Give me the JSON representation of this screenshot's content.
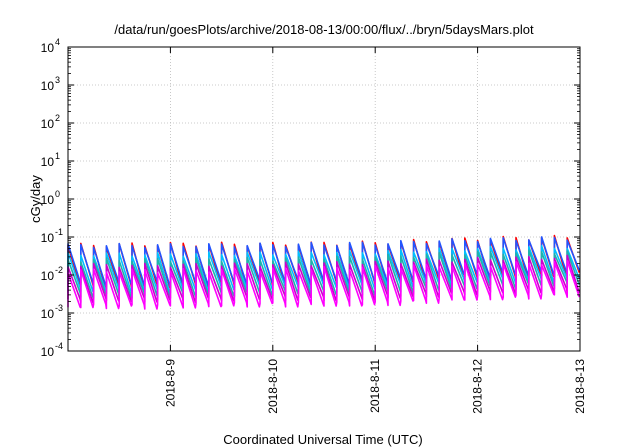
{
  "chart_data": {
    "type": "line",
    "title": "/data/run/goesPlots/archive/2018-08-13/00:00/flux/../bryn/5daysMars.plot",
    "xlabel": "Coordinated Universal Time (UTC)",
    "ylabel": "cGy/day",
    "yscale": "log",
    "ylim": [
      0.0001,
      10000
    ],
    "xlim": [
      "2018-08-08 00:00",
      "2018-08-13 00:00"
    ],
    "grid": true,
    "legend": "none",
    "y_ticks": [
      {
        "base": "10",
        "exp": "4"
      },
      {
        "base": "10",
        "exp": "3"
      },
      {
        "base": "10",
        "exp": "2"
      },
      {
        "base": "10",
        "exp": "1"
      },
      {
        "base": "10",
        "exp": "0"
      },
      {
        "base": "10",
        "exp": "-1"
      },
      {
        "base": "10",
        "exp": "-2"
      },
      {
        "base": "10",
        "exp": "-3"
      },
      {
        "base": "10",
        "exp": "-4"
      }
    ],
    "x_ticks": [
      "2018-8-9",
      "2018-8-10",
      "2018-8-11",
      "2018-8-12",
      "2018-8-13"
    ],
    "pattern": {
      "period_hours": 3,
      "description": "sawtooth: instantaneous rise at each period start, exponential decay until next period"
    },
    "series": [
      {
        "color": "#ff0000",
        "peak_values": [
          0.06,
          0.065,
          0.065,
          0.07,
          0.09,
          0.1
        ],
        "trough_values": [
          0.005,
          0.005,
          0.006,
          0.006,
          0.008,
          0.01
        ]
      },
      {
        "color": "#2255ff",
        "peak_values": [
          0.06,
          0.06,
          0.062,
          0.068,
          0.085,
          0.095
        ],
        "trough_values": [
          0.006,
          0.006,
          0.007,
          0.007,
          0.01,
          0.012
        ]
      },
      {
        "color": "#00bfff",
        "peak_values": [
          0.035,
          0.035,
          0.037,
          0.04,
          0.05,
          0.055
        ],
        "trough_values": [
          0.004,
          0.004,
          0.005,
          0.005,
          0.007,
          0.008
        ]
      },
      {
        "color": "#20b2aa",
        "peak_values": [
          0.025,
          0.025,
          0.026,
          0.03,
          0.038,
          0.042
        ],
        "trough_values": [
          0.003,
          0.003,
          0.0035,
          0.0035,
          0.005,
          0.006
        ]
      },
      {
        "color": "#cc00cc",
        "peak_values": [
          0.018,
          0.018,
          0.019,
          0.021,
          0.026,
          0.03
        ],
        "trough_values": [
          0.0022,
          0.0022,
          0.0025,
          0.0025,
          0.0035,
          0.004
        ]
      },
      {
        "color": "#ff00ff",
        "peak_values": [
          0.013,
          0.013,
          0.014,
          0.016,
          0.019,
          0.022
        ],
        "trough_values": [
          0.0015,
          0.0015,
          0.0017,
          0.0017,
          0.0024,
          0.003
        ]
      }
    ]
  }
}
